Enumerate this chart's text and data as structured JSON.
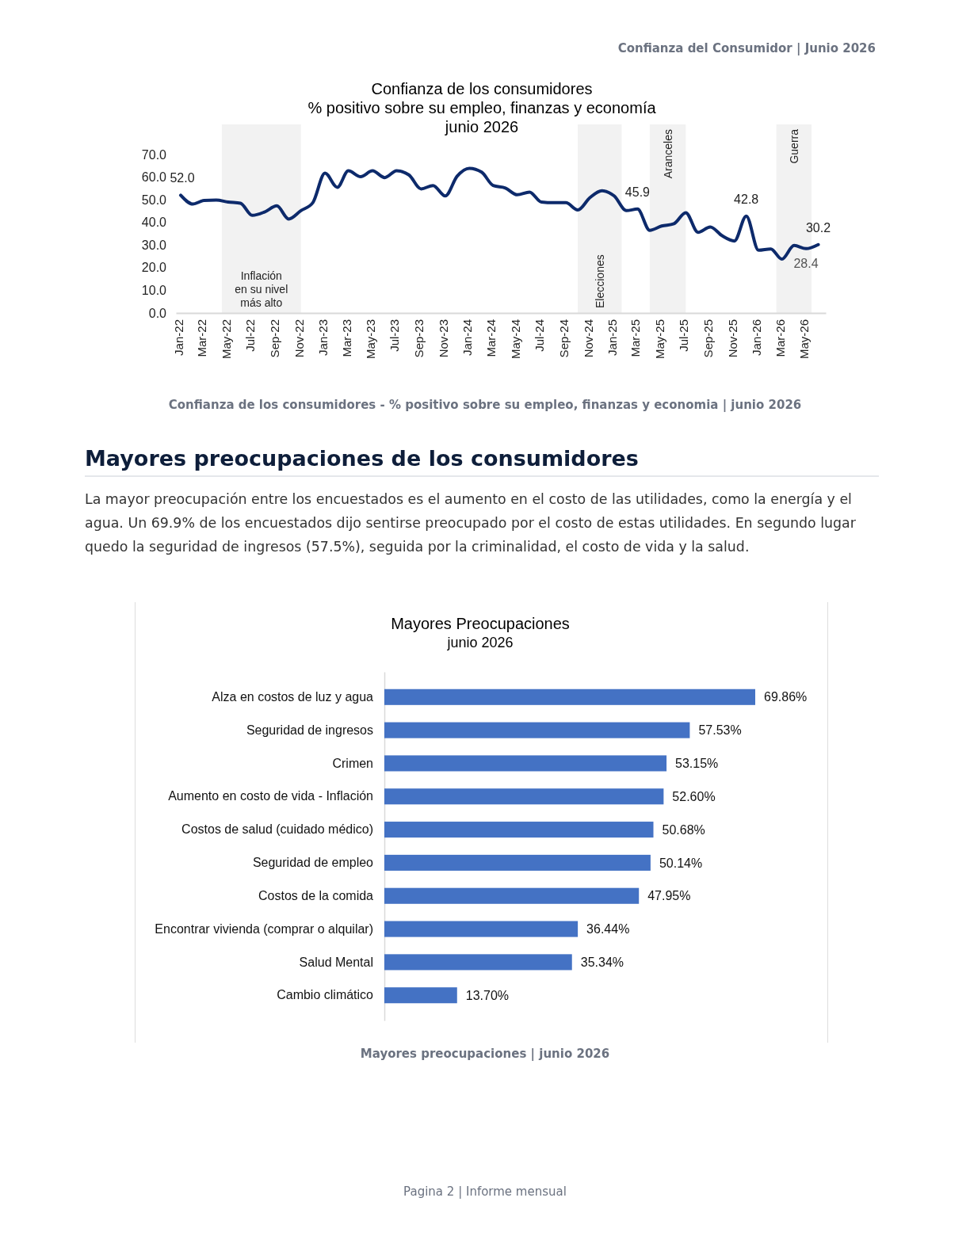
{
  "chart_data": [
    {
      "type": "line",
      "title": "Confianza de los consumidores",
      "subtitle": "% positivo sobre su empleo, finanzas y economía\njunio 2026",
      "x": [
        "2022-01",
        "2022-02",
        "2022-03",
        "2022-04",
        "2022-05",
        "2022-06",
        "2022-07",
        "2022-08",
        "2022-09",
        "2022-10",
        "2022-11",
        "2022-12",
        "2023-01",
        "2023-02",
        "2023-03",
        "2023-04",
        "2023-05",
        "2023-06",
        "2023-07",
        "2023-08",
        "2023-09",
        "2023-10",
        "2023-11",
        "2023-12",
        "2024-01",
        "2024-02",
        "2024-03",
        "2024-04",
        "2024-05",
        "2024-06",
        "2024-07",
        "2024-08",
        "2024-09",
        "2024-10",
        "2024-11",
        "2024-12",
        "2025-01",
        "2025-02",
        "2025-03",
        "2025-04",
        "2025-05",
        "2025-06",
        "2025-07",
        "2025-08",
        "2025-09",
        "2025-10",
        "2025-11",
        "2025-12",
        "2026-01",
        "2026-02",
        "2026-03",
        "2026-04",
        "2026-05",
        "2026-06"
      ],
      "series": [
        {
          "color": "#0d2a6b",
          "values": [
            52.0,
            48.1,
            49.7,
            49.9,
            49,
            48.5,
            43.1,
            44.6,
            47.3,
            41.5,
            45.2,
            48.7,
            61.8,
            55.5,
            62.8,
            60.2,
            62.8,
            59.8,
            62.8,
            61,
            54.8,
            56.3,
            51.7,
            60.4,
            63.9,
            62.2,
            56.3,
            55.2,
            52.2,
            53.4,
            49,
            48.7,
            48.7,
            45.5,
            51,
            54,
            51.7,
            45.2,
            45.9,
            36.5,
            38.4,
            39.4,
            44.3,
            35.6,
            38,
            34.1,
            31.8,
            42.8,
            27.7,
            28.3,
            23.8,
            29.8,
            28.4,
            30.2
          ],
          "value_labels": [
            "52.0",
            null,
            null,
            null,
            null,
            null,
            null,
            null,
            null,
            null,
            null,
            null,
            null,
            null,
            null,
            null,
            null,
            null,
            null,
            null,
            null,
            null,
            null,
            null,
            null,
            null,
            null,
            null,
            null,
            null,
            null,
            null,
            null,
            null,
            null,
            null,
            null,
            null,
            "45.9",
            null,
            null,
            null,
            null,
            null,
            null,
            null,
            null,
            "42.8",
            null,
            null,
            null,
            null,
            "28.4",
            "30.2"
          ]
        }
      ],
      "xlim": [
        "2021-12-20",
        "2026-06-20"
      ],
      "xticks": [
        {
          "value": "2022-01",
          "label": "Jan-22"
        },
        {
          "value": "2022-03",
          "label": "Mar-22"
        },
        {
          "value": "2022-05",
          "label": "May-22"
        },
        {
          "value": "2022-07",
          "label": "Jul-22"
        },
        {
          "value": "2022-09",
          "label": "Sep-22"
        },
        {
          "value": "2022-11",
          "label": "Nov-22"
        },
        {
          "value": "2023-01",
          "label": "Jan-23"
        },
        {
          "value": "2023-03",
          "label": "Mar-23"
        },
        {
          "value": "2023-05",
          "label": "May-23"
        },
        {
          "value": "2023-07",
          "label": "Jul-23"
        },
        {
          "value": "2023-09",
          "label": "Sep-23"
        },
        {
          "value": "2023-11",
          "label": "Nov-23"
        },
        {
          "value": "2024-01",
          "label": "Jan-24"
        },
        {
          "value": "2024-03",
          "label": "Mar-24"
        },
        {
          "value": "2024-05",
          "label": "May-24"
        },
        {
          "value": "2024-07",
          "label": "Jul-24"
        },
        {
          "value": "2024-09",
          "label": "Sep-24"
        },
        {
          "value": "2024-11",
          "label": "Nov-24"
        },
        {
          "value": "2025-01",
          "label": "Jan-25"
        },
        {
          "value": "2025-03",
          "label": "Mar-25"
        },
        {
          "value": "2025-05",
          "label": "May-25"
        },
        {
          "value": "2025-07",
          "label": "Jul-25"
        },
        {
          "value": "2025-09",
          "label": "Sep-25"
        },
        {
          "value": "2025-11",
          "label": "Nov-25"
        },
        {
          "value": "2026-01",
          "label": "Jan-26"
        },
        {
          "value": "2026-03",
          "label": "Mar-26"
        },
        {
          "value": "2026-05",
          "label": "May-26"
        }
      ],
      "ylim": [
        0,
        70
      ],
      "yticks": [
        {
          "value": 0,
          "label": "0.0"
        },
        {
          "value": 10,
          "label": "10.0"
        },
        {
          "value": 20,
          "label": "20.0"
        },
        {
          "value": 30,
          "label": "30.0"
        },
        {
          "value": 40,
          "label": "40.0"
        },
        {
          "value": 50,
          "label": "50.0"
        },
        {
          "value": 60,
          "label": "60.0"
        },
        {
          "value": 70,
          "label": "70.0"
        }
      ],
      "bands": [
        {
          "axis": "x",
          "from": "2022-04-15",
          "to": "2022-11",
          "label": "Inflación\nen su nivel\nmás alto",
          "color": "#f2f2f2"
        },
        {
          "axis": "x",
          "from": "2024-10",
          "to": "2025-01-20",
          "label": "Elecciones",
          "color": "#f2f2f2"
        },
        {
          "axis": "x",
          "from": "2025-04",
          "to": "2025-07",
          "label": "Aranceles",
          "color": "#f2f2f2"
        },
        {
          "axis": "x",
          "from": "2026-02-15",
          "to": "2026-05-15",
          "label": "Guerra",
          "color": "#f2f2f2"
        }
      ],
      "grid": false,
      "marker": "none",
      "line_style": "solid",
      "annotations": [
        "Confianza del Consumidor | Junio 2026",
        "Confianza de los consumidores - % positivo sobre su empleo, finanzas y economia | junio 2026"
      ]
    },
    {
      "type": "bar",
      "orientation": "horizontal",
      "title": "Mayores Preocupaciones",
      "subtitle": "junio 2026",
      "categories": [
        "Alza en costos de luz y agua",
        "Seguridad de ingresos",
        "Crimen",
        "Aumento en costo de vida - Inflación",
        "Costos de salud (cuidado médico)",
        "Seguridad de empleo",
        "Costos de la comida",
        "Encontrar vivienda (comprar o alquilar)",
        "Salud Mental",
        "Cambio climático"
      ],
      "values": [
        69.86,
        57.53,
        53.15,
        52.6,
        50.68,
        50.14,
        47.95,
        36.44,
        35.34,
        13.7
      ],
      "value_labels": [
        "69.86%",
        "57.53%",
        "53.15%",
        "52.60%",
        "50.68%",
        "50.14%",
        "47.95%",
        "36.44%",
        "35.34%",
        "13.70%"
      ],
      "color": "#4472c4",
      "tick_labels": "y",
      "grid": false,
      "annotations": [
        "Mayores preocupaciones de los consumidores",
        "La mayor preocupación entre los encuestados es el aumento en el costo de las utilidades, como la energía y el agua. Un 69.9% de los encuestados dijo sentirse preocupado por el costo de estas utilidades. En segundo lugar quedo la seguridad de ingresos (57.5%), seguida por la criminalidad, el costo de vida y la salud.",
        "Mayores preocupaciones | junio 2026",
        "Pagina 2 | Informe mensual"
      ]
    }
  ]
}
